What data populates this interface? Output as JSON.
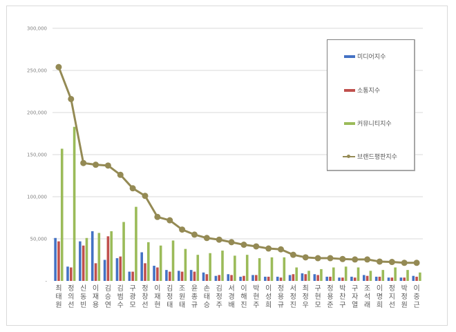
{
  "chart_data": {
    "type": "bar",
    "title": "",
    "xlabel": "",
    "ylabel": "",
    "ylim": [
      0,
      300000
    ],
    "yticks": [
      0,
      50000,
      100000,
      150000,
      200000,
      250000,
      300000
    ],
    "ytick_labels": [
      "-",
      "50,000",
      "100,000",
      "150,000",
      "200,000",
      "250,000",
      "300,000"
    ],
    "grid": true,
    "legend_position": "right",
    "categories": [
      "최태원",
      "정의선",
      "신동빈",
      "이재용",
      "김승연",
      "김범수",
      "구광모",
      "정창선",
      "이재현",
      "김정태",
      "조원태",
      "윤종규",
      "손태승",
      "김정주",
      "서경배",
      "이해진",
      "박현주",
      "이성희",
      "정용규",
      "서정진",
      "최정우",
      "구현모",
      "정용준",
      "박찬구",
      "구자열",
      "조석래",
      "이명희",
      "정지선",
      "박정원",
      "이중근"
    ],
    "series": [
      {
        "name": "미디어지수",
        "type": "bar",
        "color": "#4472c4",
        "values": [
          51000,
          17000,
          47000,
          59000,
          25000,
          27000,
          11000,
          34000,
          18000,
          13000,
          12000,
          13000,
          10000,
          6000,
          8000,
          5000,
          7000,
          5000,
          5000,
          7000,
          9000,
          8000,
          5000,
          4000,
          5000,
          7000,
          5000,
          4000,
          4000,
          6000
        ]
      },
      {
        "name": "소통지수",
        "type": "bar",
        "color": "#c0504d",
        "values": [
          47000,
          16000,
          42000,
          21000,
          53000,
          29000,
          11000,
          21000,
          16000,
          11000,
          11000,
          11000,
          8000,
          7000,
          7000,
          6000,
          7000,
          5000,
          4000,
          8000,
          8000,
          7000,
          5000,
          4000,
          4000,
          6000,
          5000,
          4000,
          4000,
          5000
        ]
      },
      {
        "name": "커뮤니티지수",
        "type": "bar",
        "color": "#9bbb59",
        "values": [
          157000,
          183000,
          51000,
          57000,
          59000,
          70000,
          88000,
          46000,
          42000,
          48000,
          38000,
          31000,
          33000,
          36000,
          30000,
          31000,
          27000,
          28000,
          28000,
          16000,
          12000,
          14000,
          16000,
          17000,
          16000,
          12000,
          13000,
          16000,
          13000,
          10000
        ]
      },
      {
        "name": "브랜드평판지수",
        "type": "line",
        "color": "#948a54",
        "values": [
          254000,
          216000,
          140000,
          138000,
          137000,
          126000,
          110000,
          101000,
          76000,
          72000,
          61000,
          55000,
          51000,
          49000,
          46000,
          43000,
          41000,
          38500,
          37500,
          31000,
          28000,
          27000,
          27000,
          26000,
          25500,
          25500,
          23000,
          22500,
          21500,
          21500
        ]
      }
    ]
  },
  "legend": {
    "items": [
      {
        "label": "미디어지수",
        "kind": "bar",
        "color": "#4472c4"
      },
      {
        "label": "소통지수",
        "kind": "bar",
        "color": "#c0504d"
      },
      {
        "label": "커뮤니티지수",
        "kind": "bar",
        "color": "#9bbb59"
      },
      {
        "label": "브랜드평판지수",
        "kind": "line",
        "color": "#948a54"
      }
    ]
  },
  "colors": {
    "grid": "#d9d9d9",
    "border": "#d9d9d9",
    "tick_text": "#7f7f7f",
    "category_text": "#595959"
  }
}
